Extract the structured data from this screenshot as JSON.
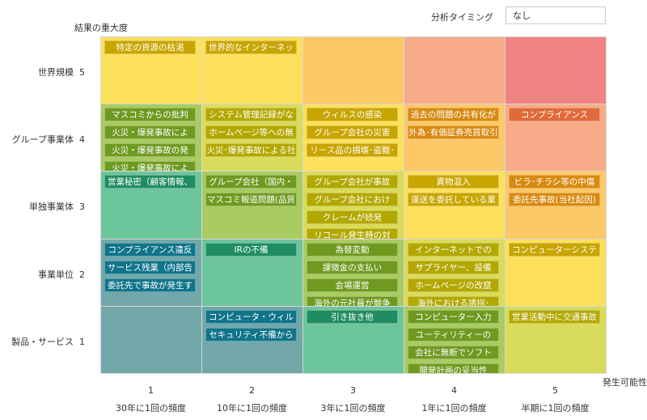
{
  "header": {
    "timing_label": "分析タイミング",
    "timing_value": "なし"
  },
  "chart_data": {
    "type": "heatmap",
    "ylabel": "結果の重大度",
    "xlabel": "発生可能性",
    "y_categories": [
      {
        "label": "世界規模",
        "value": "5"
      },
      {
        "label": "グループ事業体",
        "value": "4"
      },
      {
        "label": "単独事業体",
        "value": "3"
      },
      {
        "label": "事業単位",
        "value": "2"
      },
      {
        "label": "製品・サービス",
        "value": "1"
      }
    ],
    "x_categories": [
      {
        "value": "1",
        "label": "30年に1回の頻度"
      },
      {
        "value": "2",
        "label": "10年に1回の頻度"
      },
      {
        "value": "3",
        "label": "3年に1回の頻度"
      },
      {
        "value": "4",
        "label": "1年に1回の頻度"
      },
      {
        "value": "5",
        "label": "半期に1回の頻度"
      }
    ],
    "cell_colors": [
      [
        "#fde05c",
        "#fde05c",
        "#fdc868",
        "#f8ab88",
        "#ef8482"
      ],
      [
        "#a9cb62",
        "#d9dc5a",
        "#fde05c",
        "#fdc868",
        "#f8ab88"
      ],
      [
        "#6dc59c",
        "#a9cb62",
        "#d9dc5a",
        "#fde05c",
        "#fdc868"
      ],
      [
        "#72a8aa",
        "#6dc59c",
        "#a9cb62",
        "#d9dc5a",
        "#fde05c"
      ],
      [
        "#72a8aa",
        "#72a8aa",
        "#6dc59c",
        "#a9cb62",
        "#d9dc5a"
      ]
    ],
    "chip_colors": [
      [
        "#c9a500",
        "#c9a500",
        "#d88a10",
        "#d88a10",
        "#e06a3a"
      ],
      [
        "#6f9a20",
        "#b3a800",
        "#c9a500",
        "#d88a10",
        "#e06a3a"
      ],
      [
        "#1f8c62",
        "#6f9a20",
        "#b3a800",
        "#c9a500",
        "#d88a10"
      ],
      [
        "#10748a",
        "#1f8c62",
        "#6f9a20",
        "#b3a800",
        "#c9a500"
      ],
      [
        "#10748a",
        "#10748a",
        "#1f8c62",
        "#6f9a20",
        "#b3a800"
      ]
    ],
    "cells": [
      [
        [
          "特定の資源の枯渇"
        ],
        [
          "世界的なインターネッ"
        ],
        [],
        [],
        []
      ],
      [
        [
          "マスコミからの批判",
          "火災・爆発事故によ",
          "火災・爆発事故の発",
          "火災・爆発事故によ"
        ],
        [
          "システム管理記録がな",
          "ホームページ等への無",
          "火災･爆発事故による社"
        ],
        [
          "ウィルスの感染",
          "グループ会社の災害",
          "リース品の損壊･盗難･"
        ],
        [
          "過去の問題の共有化が",
          "外為･有価証券売買取引"
        ],
        [
          "コンプライアンス"
        ]
      ],
      [
        [
          "営業秘密（顧客情報、"
        ],
        [
          "グループ会社（国内・",
          "マスコミ報道問題(品質"
        ],
        [
          "グループ会社が事故",
          "グループ会社におけ",
          "クレームが続発",
          "リコール発生時の対"
        ],
        [
          "異物混入",
          "運送を委託している業"
        ],
        [
          "ビラ･チラシ等の中傷",
          "委託先事故(当社起因)"
        ]
      ],
      [
        [
          "コンプライアンス違反",
          "サービス残業（内部告",
          "委託先で事故が発生す"
        ],
        [
          "IRの不備"
        ],
        [
          "為替変動",
          "課徴金の支払い",
          "会場運営",
          "海外の元社員が競争"
        ],
        [
          "インターネットでの",
          "サプライヤー、設備",
          "ホームページの改竄",
          "海外における誘拐･"
        ],
        [
          "コンピューターシステ"
        ]
      ],
      [
        [],
        [
          "コンピュータ・ウィル",
          "セキュリティ不備から"
        ],
        [
          "引き抜き他"
        ],
        [
          "コンピューター入力",
          "ユーティリティーの",
          "会社に無断でソフト",
          "開発計画の妥当性"
        ],
        [
          "営業活動中に交通事故"
        ]
      ]
    ]
  }
}
